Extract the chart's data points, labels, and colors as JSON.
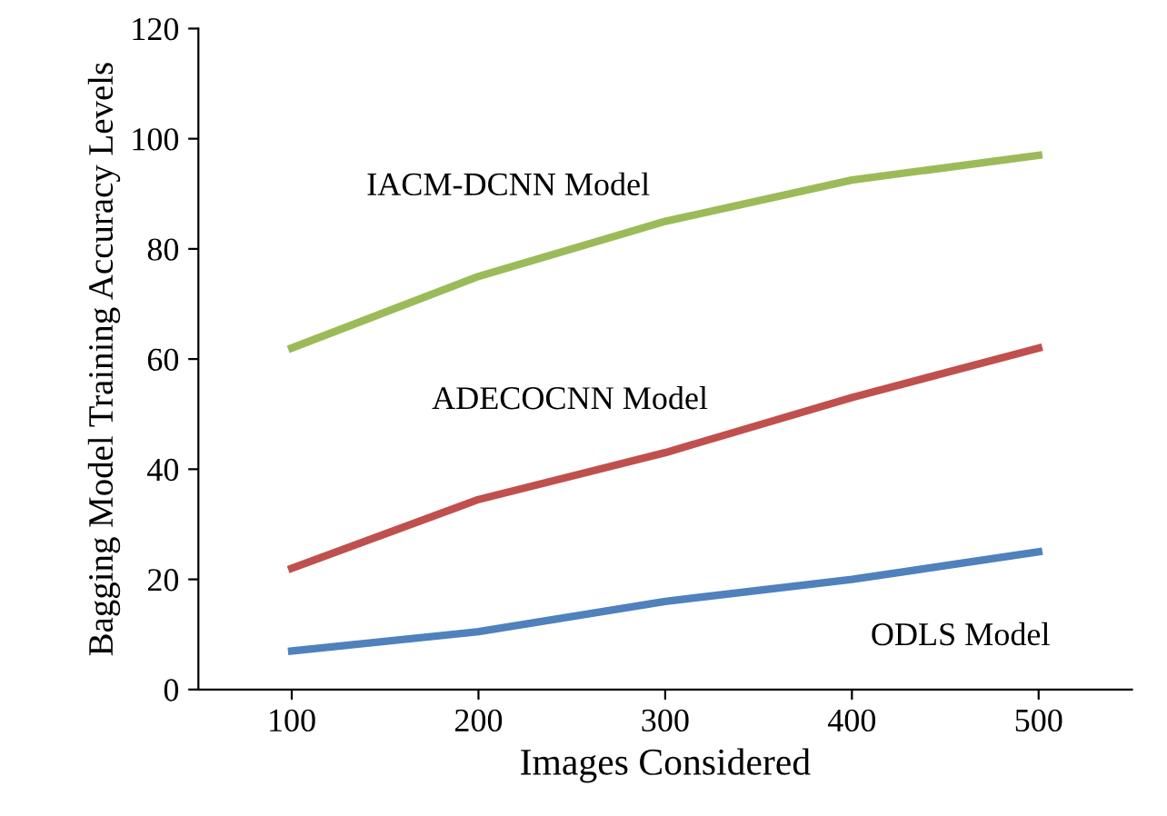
{
  "chart_data": {
    "type": "line",
    "xlabel": "Images Considered",
    "ylabel": "Bagging Model Training Accuracy Levels",
    "categories": [
      "100",
      "200",
      "300",
      "400",
      "500"
    ],
    "series": [
      {
        "name": "IACM-DCNN Model",
        "color": "#9bbb59",
        "values": [
          62,
          75,
          85,
          92.5,
          97
        ]
      },
      {
        "name": "ADECOCNN Model",
        "color": "#c0504d",
        "values": [
          22,
          34.5,
          43,
          53,
          62
        ]
      },
      {
        "name": "ODLS Model",
        "color": "#4f81bd",
        "values": [
          7,
          10.5,
          16,
          20,
          25
        ]
      }
    ],
    "ylim": [
      0,
      120
    ],
    "yticks": [
      0,
      20,
      40,
      60,
      80,
      100,
      120
    ],
    "grid": false,
    "marker": "none",
    "line_style": "solid",
    "legend": false
  }
}
